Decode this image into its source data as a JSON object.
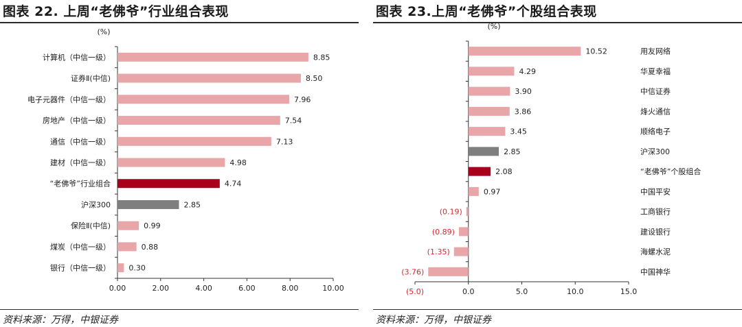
{
  "left": {
    "title": "图表 22. 上周“老佛爷”行业组合表现",
    "source": "资料来源：万得，中银证券",
    "chart_data": {
      "type": "bar",
      "orientation": "horizontal",
      "unit": "(%)",
      "categories": [
        "计算机（中信一级）",
        "证券Ⅱ(中信)",
        "电子元器件（中信一级）",
        "房地产（中信一级）",
        "通信（中信一级）",
        "建材（中信一级）",
        "“老佛爷”行业组合",
        "沪深300",
        "保险Ⅱ(中信)",
        "煤炭（中信一级）",
        "银行（中信一级）"
      ],
      "values": [
        8.85,
        8.5,
        7.96,
        7.54,
        7.13,
        4.98,
        4.74,
        2.85,
        0.99,
        0.88,
        0.3
      ],
      "value_labels": [
        "8.85",
        "8.50",
        "7.96",
        "7.54",
        "7.13",
        "4.98",
        "4.74",
        "2.85",
        "0.99",
        "0.88",
        "0.30"
      ],
      "highlight": {
        "“老佛爷”行业组合": "#a8001c",
        "沪深300": "#7f7f7f"
      },
      "default_color": "#e8a6a8",
      "xlim": [
        0,
        10
      ],
      "xticks": [
        0,
        2,
        4,
        6,
        8,
        10
      ],
      "xtick_labels": [
        "0.00",
        "2.00",
        "4.00",
        "6.00",
        "8.00",
        "10.00"
      ]
    }
  },
  "right": {
    "title": "图表 23.上周“老佛爷”个股组合表现",
    "source": "资料来源：万得，中银证券",
    "chart_data": {
      "type": "bar",
      "orientation": "horizontal",
      "unit": "(%)",
      "categories": [
        "用友网络",
        "华夏幸福",
        "中信证券",
        "烽火通信",
        "顺络电子",
        "沪深300",
        "“老佛爷”个股组合",
        "中国平安",
        "工商银行",
        "建设银行",
        "海螺水泥",
        "中国神华"
      ],
      "values": [
        10.52,
        4.29,
        3.9,
        3.86,
        3.45,
        2.85,
        2.08,
        0.97,
        -0.19,
        -0.89,
        -1.35,
        -3.76
      ],
      "value_labels": [
        "10.52",
        "4.29",
        "3.90",
        "3.86",
        "3.45",
        "2.85",
        "2.08",
        "0.97",
        "(0.19)",
        "(0.89)",
        "(1.35)",
        "(3.76)"
      ],
      "highlight": {
        "沪深300": "#7f7f7f",
        "“老佛爷”个股组合": "#a8001c"
      },
      "default_color": "#e8a6a8",
      "xlim": [
        -5,
        15
      ],
      "xticks": [
        -5,
        0,
        5,
        10,
        15
      ],
      "xtick_labels": [
        "(5.0)",
        "0.0",
        "5.0",
        "10.0",
        "15.0"
      ]
    }
  }
}
